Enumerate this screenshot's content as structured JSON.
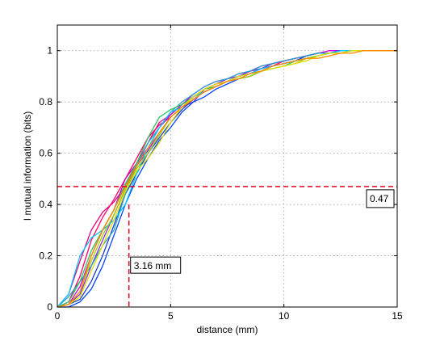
{
  "chart_data": {
    "type": "line",
    "xlabel": "distance (mm)",
    "ylabel": "I mutual information (bits)",
    "xlim": [
      0,
      15
    ],
    "ylim": [
      0,
      1.1
    ],
    "xticks": [
      0,
      5,
      10,
      15
    ],
    "yticks": [
      0,
      0.2,
      0.4,
      0.6,
      0.8,
      1
    ],
    "grid": true,
    "colors": [
      "#e6007e",
      "#ff0066",
      "#cc00cc",
      "#8a2be2",
      "#1e3cc8",
      "#0044ff",
      "#2aa3c8",
      "#00c8ff",
      "#30c060",
      "#a0d000",
      "#e0e000",
      "#ff8800"
    ],
    "series": [
      {
        "x": [
          0,
          0.5,
          1,
          1.5,
          2,
          2.5,
          3,
          3.5,
          4,
          4.5,
          5,
          5.5,
          6,
          6.5,
          7,
          7.5,
          8,
          8.5,
          9,
          9.5,
          10,
          10.5,
          11,
          11.5,
          12,
          12.5,
          13,
          13.5,
          14,
          14.5,
          15
        ],
        "values": [
          0,
          0.05,
          0.18,
          0.3,
          0.37,
          0.41,
          0.47,
          0.56,
          0.64,
          0.72,
          0.75,
          0.79,
          0.82,
          0.84,
          0.86,
          0.88,
          0.9,
          0.92,
          0.93,
          0.95,
          0.96,
          0.97,
          0.98,
          0.99,
          0.99,
          1,
          1,
          1,
          1,
          1,
          1
        ]
      },
      {
        "x": [
          0,
          0.5,
          1,
          1.5,
          2,
          2.5,
          3,
          3.5,
          4,
          4.5,
          5,
          5.5,
          6,
          6.5,
          7,
          7.5,
          8,
          8.5,
          9,
          9.5,
          10,
          10.5,
          11,
          11.5,
          12,
          12.5,
          13,
          13.5,
          14,
          14.5,
          15
        ],
        "values": [
          0,
          0.02,
          0.12,
          0.26,
          0.35,
          0.42,
          0.5,
          0.58,
          0.66,
          0.71,
          0.74,
          0.78,
          0.82,
          0.85,
          0.87,
          0.88,
          0.9,
          0.91,
          0.93,
          0.94,
          0.96,
          0.97,
          0.98,
          0.99,
          0.99,
          0.99,
          1,
          1,
          1,
          1,
          1
        ]
      },
      {
        "x": [
          0,
          0.5,
          1,
          1.5,
          2,
          2.5,
          3,
          3.5,
          4,
          4.5,
          5,
          5.5,
          6,
          6.5,
          7,
          7.5,
          8,
          8.5,
          9,
          9.5,
          10,
          10.5,
          11,
          11.5,
          12,
          12.5,
          13,
          13.5,
          14,
          14.5,
          15
        ],
        "values": [
          0,
          0.01,
          0.08,
          0.2,
          0.3,
          0.38,
          0.5,
          0.56,
          0.62,
          0.7,
          0.75,
          0.79,
          0.83,
          0.86,
          0.88,
          0.89,
          0.91,
          0.92,
          0.94,
          0.95,
          0.96,
          0.97,
          0.98,
          0.99,
          1,
          1,
          1,
          1,
          1,
          1,
          1
        ]
      },
      {
        "x": [
          0,
          0.5,
          1,
          1.5,
          2,
          2.5,
          3,
          3.5,
          4,
          4.5,
          5,
          5.5,
          6,
          6.5,
          7,
          7.5,
          8,
          8.5,
          9,
          9.5,
          10,
          10.5,
          11,
          11.5,
          12,
          12.5,
          13,
          13.5,
          14,
          14.5,
          15
        ],
        "values": [
          0,
          0.01,
          0.05,
          0.16,
          0.26,
          0.36,
          0.46,
          0.55,
          0.61,
          0.68,
          0.74,
          0.78,
          0.8,
          0.85,
          0.87,
          0.89,
          0.9,
          0.92,
          0.93,
          0.95,
          0.96,
          0.97,
          0.98,
          0.99,
          0.99,
          1,
          1,
          1,
          1,
          1,
          1
        ]
      },
      {
        "x": [
          0,
          0.5,
          1,
          1.5,
          2,
          2.5,
          3,
          3.5,
          4,
          4.5,
          5,
          5.5,
          6,
          6.5,
          7,
          7.5,
          8,
          8.5,
          9,
          9.5,
          10,
          10.5,
          11,
          11.5,
          12,
          12.5,
          13,
          13.5,
          14,
          14.5,
          15
        ],
        "values": [
          0,
          0.01,
          0.03,
          0.1,
          0.2,
          0.32,
          0.44,
          0.52,
          0.6,
          0.66,
          0.72,
          0.77,
          0.81,
          0.84,
          0.86,
          0.88,
          0.9,
          0.91,
          0.93,
          0.94,
          0.95,
          0.96,
          0.98,
          0.99,
          0.99,
          1,
          1,
          1,
          1,
          1,
          1
        ]
      },
      {
        "x": [
          0,
          0.5,
          1,
          1.5,
          2,
          2.5,
          3,
          3.5,
          4,
          4.5,
          5,
          5.5,
          6,
          6.5,
          7,
          7.5,
          8,
          8.5,
          9,
          9.5,
          10,
          10.5,
          11,
          11.5,
          12,
          12.5,
          13,
          13.5,
          14,
          14.5,
          15
        ],
        "values": [
          0,
          0,
          0.02,
          0.07,
          0.16,
          0.28,
          0.4,
          0.5,
          0.58,
          0.65,
          0.7,
          0.76,
          0.8,
          0.82,
          0.85,
          0.87,
          0.89,
          0.9,
          0.92,
          0.94,
          0.95,
          0.96,
          0.97,
          0.98,
          0.99,
          1,
          1,
          1,
          1,
          1,
          1
        ]
      },
      {
        "x": [
          0,
          0.5,
          1,
          1.5,
          2,
          2.5,
          3,
          3.5,
          4,
          4.5,
          5,
          5.5,
          6,
          6.5,
          7,
          7.5,
          8,
          8.5,
          9,
          9.5,
          10,
          10.5,
          11,
          11.5,
          12,
          12.5,
          13,
          13.5,
          14,
          14.5,
          15
        ],
        "values": [
          0,
          0.04,
          0.1,
          0.16,
          0.24,
          0.3,
          0.44,
          0.55,
          0.64,
          0.7,
          0.76,
          0.8,
          0.83,
          0.86,
          0.88,
          0.89,
          0.91,
          0.92,
          0.94,
          0.95,
          0.96,
          0.97,
          0.98,
          0.99,
          0.99,
          1,
          1,
          1,
          1,
          1,
          1
        ]
      },
      {
        "x": [
          0,
          0.5,
          1,
          1.5,
          2,
          2.5,
          3,
          3.5,
          4,
          4.5,
          5,
          5.5,
          6,
          6.5,
          7,
          7.5,
          8,
          8.5,
          9,
          9.5,
          10,
          10.5,
          11,
          11.5,
          12,
          12.5,
          13,
          13.5,
          14,
          14.5,
          15
        ],
        "values": [
          0,
          0.05,
          0.2,
          0.27,
          0.3,
          0.34,
          0.4,
          0.52,
          0.62,
          0.7,
          0.76,
          0.78,
          0.82,
          0.84,
          0.86,
          0.88,
          0.9,
          0.91,
          0.93,
          0.94,
          0.95,
          0.96,
          0.97,
          0.98,
          0.99,
          1,
          1,
          1,
          1,
          1,
          1
        ]
      },
      {
        "x": [
          0,
          0.5,
          1,
          1.5,
          2,
          2.5,
          3,
          3.5,
          4,
          4.5,
          5,
          5.5,
          6,
          6.5,
          7,
          7.5,
          8,
          8.5,
          9,
          9.5,
          10,
          10.5,
          11,
          11.5,
          12,
          12.5,
          13,
          13.5,
          14,
          14.5,
          15
        ],
        "values": [
          0,
          0.02,
          0.1,
          0.22,
          0.3,
          0.38,
          0.48,
          0.56,
          0.66,
          0.74,
          0.77,
          0.79,
          0.82,
          0.85,
          0.86,
          0.88,
          0.9,
          0.91,
          0.92,
          0.93,
          0.94,
          0.96,
          0.97,
          0.98,
          0.99,
          0.99,
          1,
          1,
          1,
          1,
          1
        ]
      },
      {
        "x": [
          0,
          0.5,
          1,
          1.5,
          2,
          2.5,
          3,
          3.5,
          4,
          4.5,
          5,
          5.5,
          6,
          6.5,
          7,
          7.5,
          8,
          8.5,
          9,
          9.5,
          10,
          10.5,
          11,
          11.5,
          12,
          12.5,
          13,
          13.5,
          14,
          14.5,
          15
        ],
        "values": [
          0,
          0.01,
          0.06,
          0.18,
          0.28,
          0.36,
          0.46,
          0.54,
          0.6,
          0.67,
          0.74,
          0.78,
          0.81,
          0.84,
          0.86,
          0.88,
          0.89,
          0.9,
          0.92,
          0.93,
          0.94,
          0.95,
          0.97,
          0.98,
          0.99,
          0.99,
          1,
          1,
          1,
          1,
          1
        ]
      },
      {
        "x": [
          0,
          0.5,
          1,
          1.5,
          2,
          2.5,
          3,
          3.5,
          4,
          4.5,
          5,
          5.5,
          6,
          6.5,
          7,
          7.5,
          8,
          8.5,
          9,
          9.5,
          10,
          10.5,
          11,
          11.5,
          12,
          12.5,
          13,
          13.5,
          14,
          14.5,
          15
        ],
        "values": [
          0,
          0.01,
          0.04,
          0.14,
          0.24,
          0.34,
          0.45,
          0.53,
          0.58,
          0.64,
          0.72,
          0.78,
          0.82,
          0.85,
          0.87,
          0.88,
          0.9,
          0.91,
          0.92,
          0.93,
          0.94,
          0.95,
          0.96,
          0.98,
          0.99,
          0.99,
          1,
          1,
          1,
          1,
          1
        ]
      },
      {
        "x": [
          0,
          0.5,
          1,
          1.5,
          2,
          2.5,
          3,
          3.5,
          4,
          4.5,
          5,
          5.5,
          6,
          6.5,
          7,
          7.5,
          8,
          8.5,
          9,
          9.5,
          10,
          10.5,
          11,
          11.5,
          12,
          12.5,
          13,
          13.5,
          14,
          14.5,
          15
        ],
        "values": [
          0,
          0.01,
          0.06,
          0.2,
          0.3,
          0.38,
          0.47,
          0.55,
          0.62,
          0.68,
          0.74,
          0.78,
          0.81,
          0.84,
          0.86,
          0.88,
          0.89,
          0.91,
          0.92,
          0.94,
          0.95,
          0.96,
          0.97,
          0.97,
          0.98,
          0.99,
          0.99,
          1,
          1,
          1,
          1
        ]
      }
    ],
    "reference_lines": {
      "color": "#e8001c",
      "x_value": 3.16,
      "y_value": 0.47,
      "x_label": "3.16 mm",
      "y_label": "0.47"
    }
  }
}
